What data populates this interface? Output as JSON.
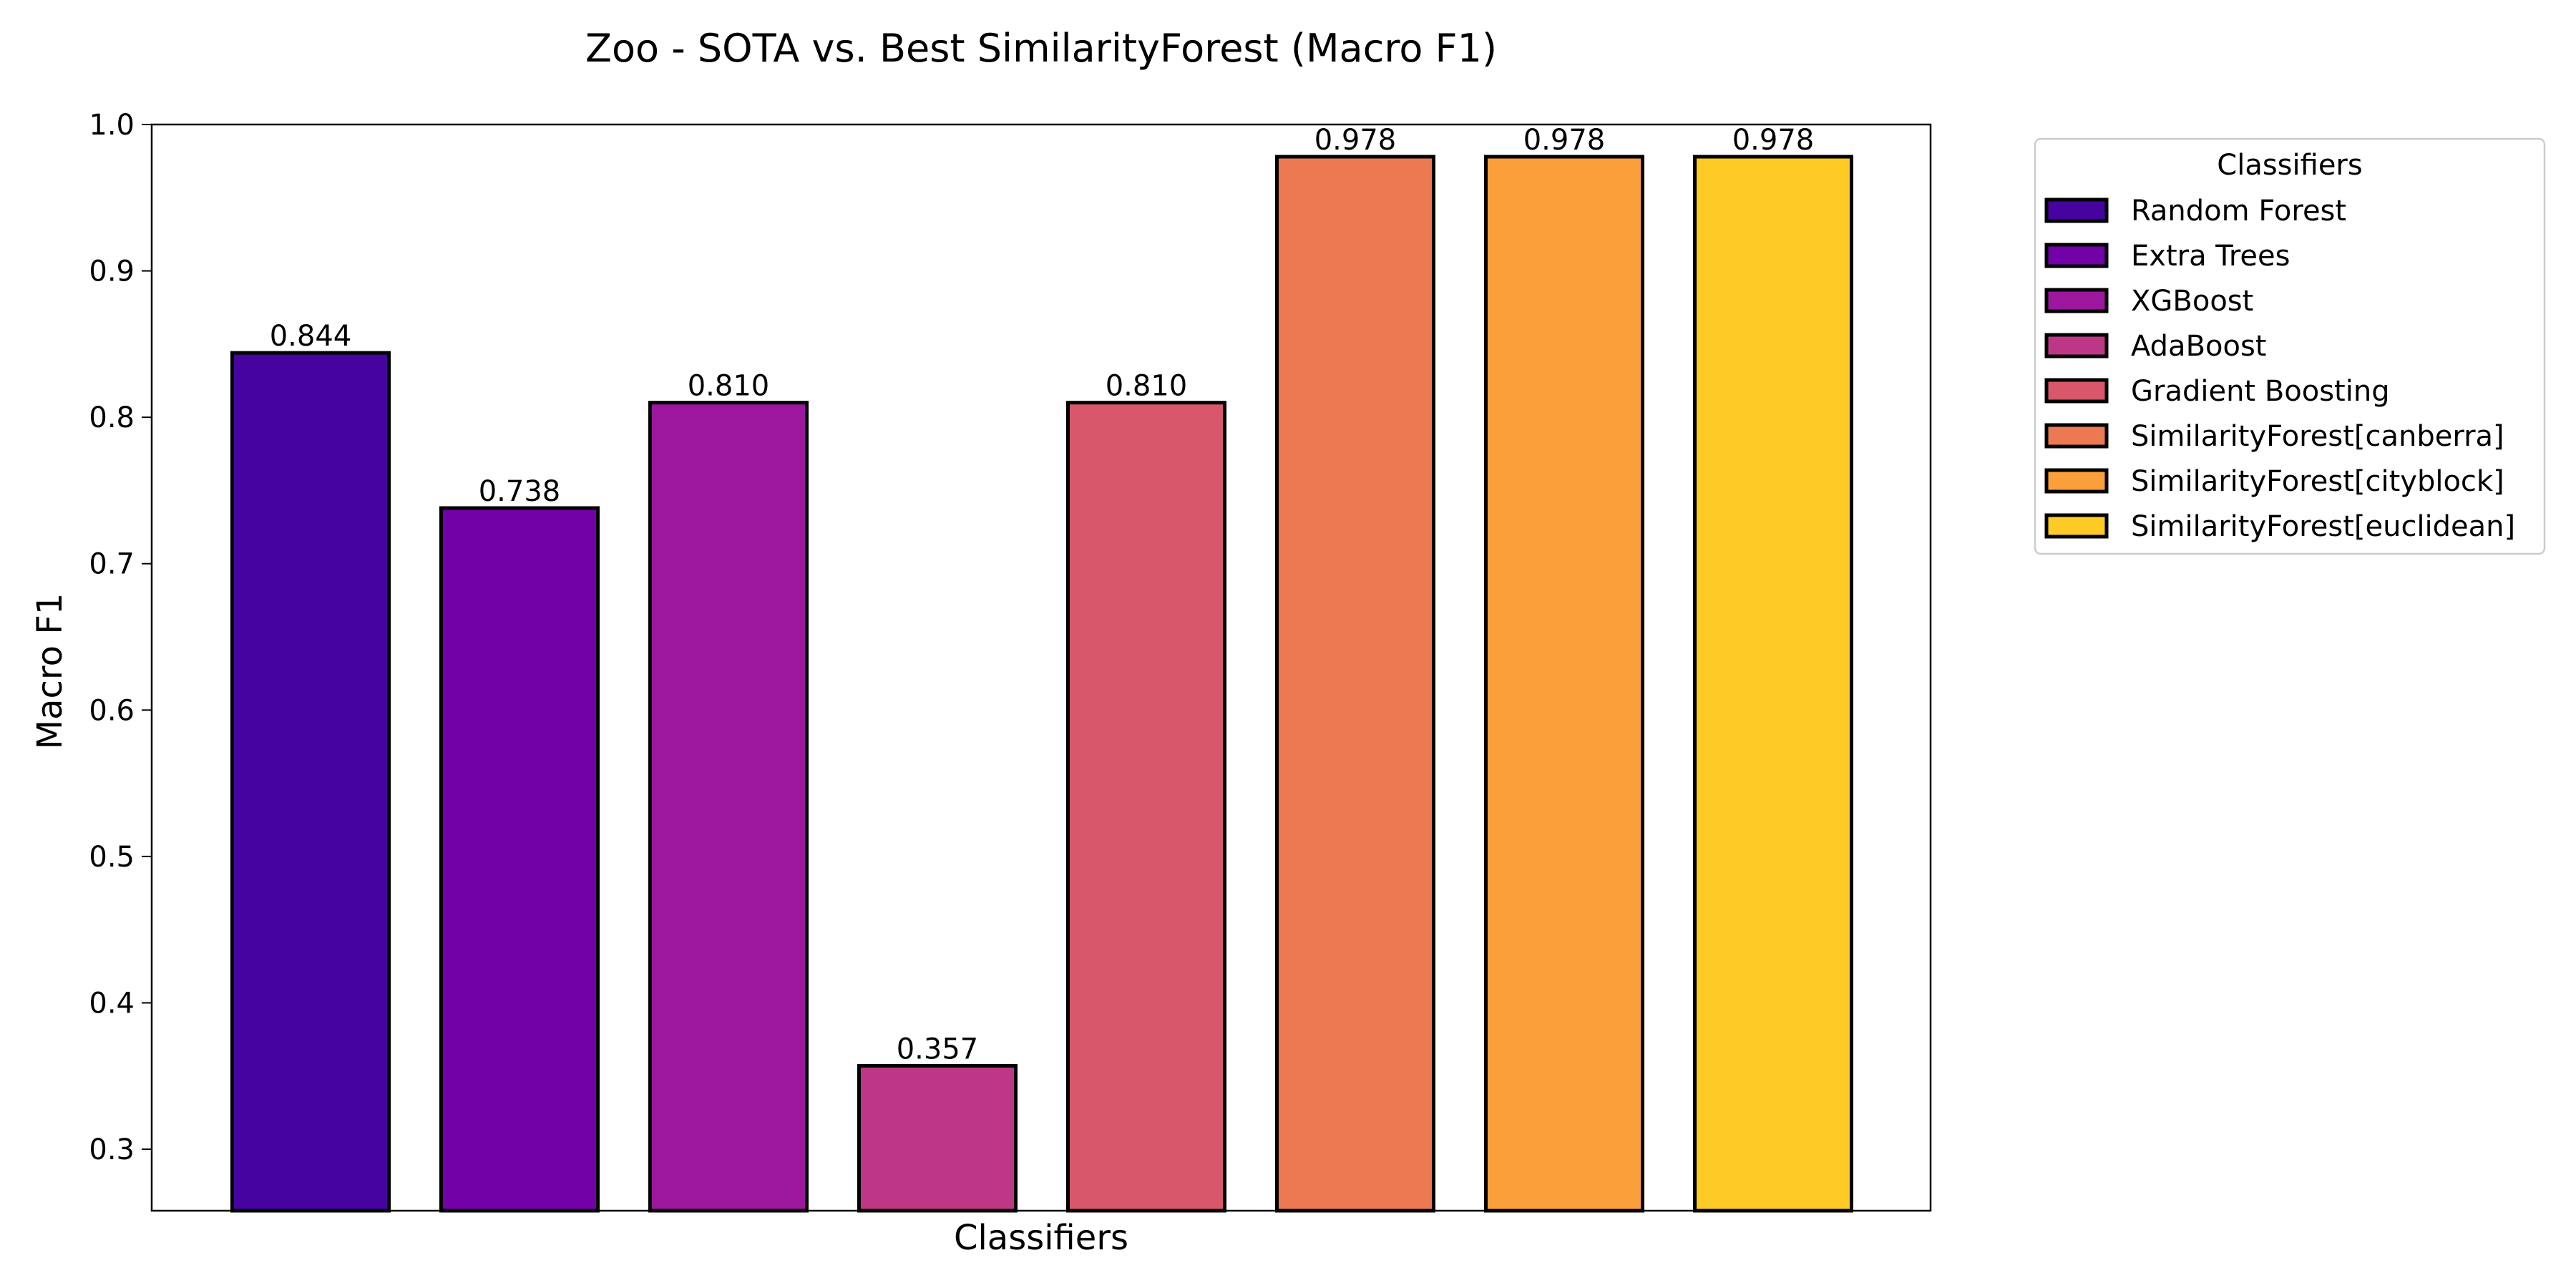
{
  "chart_data": {
    "type": "bar",
    "title": "Zoo - SOTA vs. Best SimilarityForest (Macro F1)",
    "xlabel": "Classifiers",
    "ylabel": "Macro F1",
    "ylim": [
      0.258,
      1.0
    ],
    "yticks": [
      "0.3",
      "0.4",
      "0.5",
      "0.6",
      "0.7",
      "0.8",
      "0.9",
      "1.0"
    ],
    "grid": false,
    "legend": {
      "title": "Classifiers",
      "placement": "outside-top-right"
    },
    "categories": [
      "Random Forest",
      "Extra Trees",
      "XGBoost",
      "AdaBoost",
      "Gradient Boosting",
      "SimilarityForest[canberra]",
      "SimilarityForest[cityblock]",
      "SimilarityForest[euclidean]"
    ],
    "values": [
      0.844,
      0.738,
      0.81,
      0.357,
      0.81,
      0.978,
      0.978,
      0.978
    ],
    "value_labels": [
      "0.844",
      "0.738",
      "0.810",
      "0.357",
      "0.810",
      "0.978",
      "0.978",
      "0.978"
    ],
    "colors": [
      "#46039f",
      "#7201a8",
      "#9c179e",
      "#bd3786",
      "#d8576b",
      "#ed7953",
      "#fb9f3a",
      "#fdca26"
    ]
  }
}
